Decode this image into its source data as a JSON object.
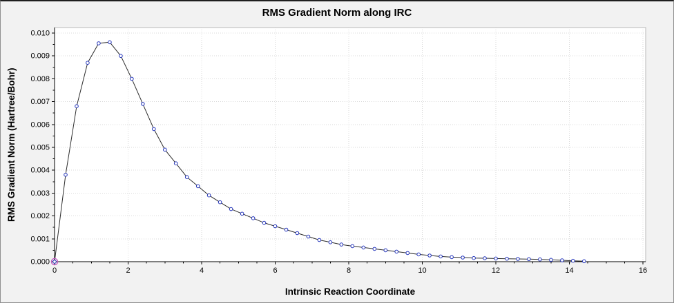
{
  "chart_data": {
    "type": "line",
    "title": "RMS Gradient Norm along IRC",
    "xlabel": "Intrinsic Reaction Coordinate",
    "ylabel": "RMS Gradient Norm (Hartree/Bohr)",
    "xlim": [
      0,
      16
    ],
    "ylim": [
      0,
      0.01
    ],
    "x_ticks": [
      0,
      2,
      4,
      6,
      8,
      10,
      12,
      14,
      16
    ],
    "x_tick_labels": [
      "0",
      "2",
      "4",
      "6",
      "8",
      "10",
      "12",
      "14",
      "16"
    ],
    "x_minor_step": 0.5,
    "y_ticks": [
      0,
      0.001,
      0.002,
      0.003,
      0.004,
      0.005,
      0.006,
      0.007,
      0.008,
      0.009,
      0.01
    ],
    "y_tick_labels": [
      "0.000",
      "0.001",
      "0.002",
      "0.003",
      "0.004",
      "0.005",
      "0.006",
      "0.007",
      "0.008",
      "0.009",
      "0.010"
    ],
    "y_minor_step": 0.0005,
    "grid": true,
    "legend": "none",
    "selected_point_index": 0,
    "series": [
      {
        "name": "RMS Gradient Norm",
        "x": [
          0,
          0.3,
          0.6,
          0.9,
          1.2,
          1.5,
          1.8,
          2.1,
          2.4,
          2.7,
          3.0,
          3.3,
          3.6,
          3.9,
          4.2,
          4.5,
          4.8,
          5.1,
          5.4,
          5.7,
          6.0,
          6.3,
          6.6,
          6.9,
          7.2,
          7.5,
          7.8,
          8.1,
          8.4,
          8.7,
          9.0,
          9.3,
          9.6,
          9.9,
          10.2,
          10.5,
          10.8,
          11.1,
          11.4,
          11.7,
          12.0,
          12.3,
          12.6,
          12.9,
          13.2,
          13.5,
          13.8,
          14.1,
          14.4
        ],
        "y": [
          0,
          0.0038,
          0.0068,
          0.0087,
          0.00955,
          0.0096,
          0.009,
          0.008,
          0.0069,
          0.0058,
          0.0049,
          0.0043,
          0.0037,
          0.0033,
          0.0029,
          0.0026,
          0.0023,
          0.0021,
          0.0019,
          0.0017,
          0.00155,
          0.0014,
          0.00125,
          0.0011,
          0.00095,
          0.00085,
          0.00075,
          0.00068,
          0.00062,
          0.00056,
          0.0005,
          0.00044,
          0.00038,
          0.00032,
          0.00027,
          0.00023,
          0.0002,
          0.00018,
          0.00016,
          0.00015,
          0.00014,
          0.00013,
          0.00012,
          0.00011,
          0.0001,
          8e-05,
          6e-05,
          4e-05,
          2e-05
        ]
      }
    ],
    "colors": {
      "window_bg": "#f2f2f2",
      "plot_bg": "#ffffff",
      "frame": "#b8b8b8",
      "grid": "#d9d9d9",
      "axis": "#000000",
      "line": "#2b2b2b",
      "marker": "#2233bb",
      "marker_fill": "#ffffff",
      "selected_ring": "#c05bbf"
    }
  }
}
